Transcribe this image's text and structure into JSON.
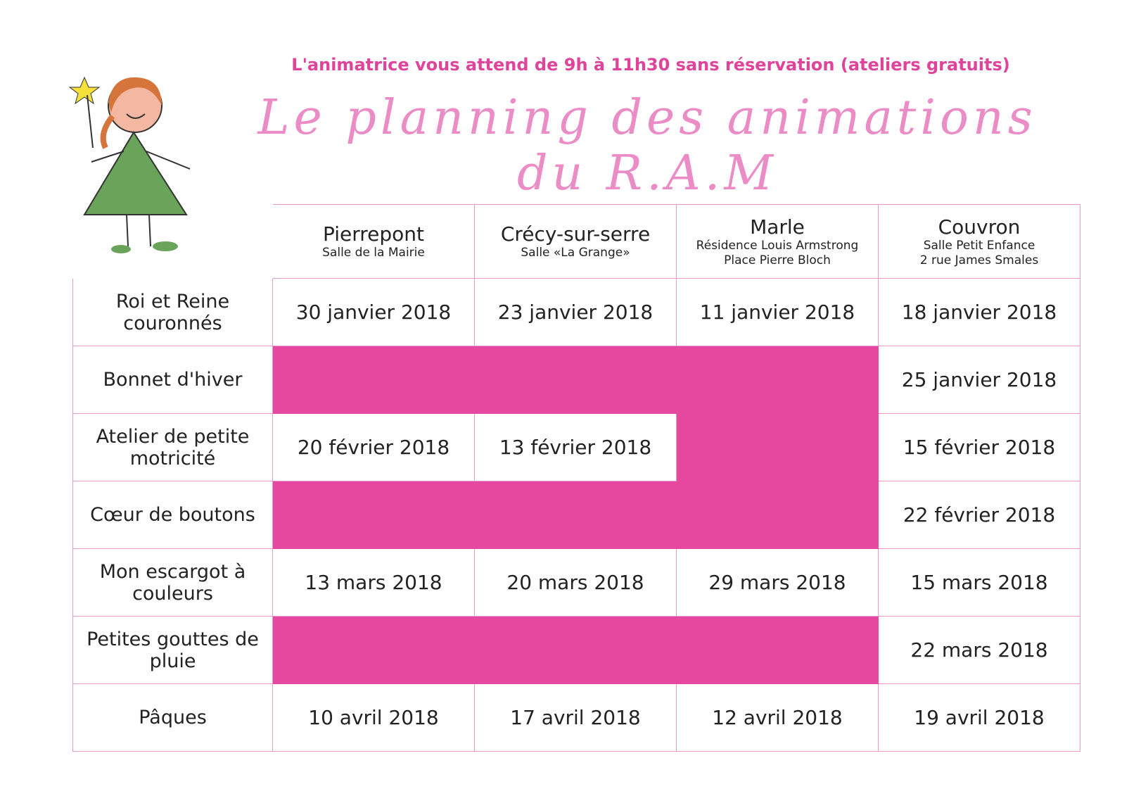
{
  "header": {
    "subtitle": "L'animatrice vous attend de 9h à 11h30 sans réservation (ateliers gratuits)",
    "title": "Le planning des animations du R.A.M"
  },
  "table": {
    "columns": [
      {
        "name": "Pierrepont",
        "details": [
          "Salle de la Mairie"
        ]
      },
      {
        "name": "Crécy-sur-serre",
        "details": [
          "Salle «La Grange»"
        ]
      },
      {
        "name": "Marle",
        "details": [
          "Résidence Louis Armstrong",
          "Place Pierre Bloch"
        ]
      },
      {
        "name": "Couvron",
        "details": [
          "Salle Petit Enfance",
          "2 rue James Smales"
        ]
      }
    ],
    "rows": [
      {
        "activity": "Roi et Reine couronnés",
        "dates": [
          "30 janvier 2018",
          "23 janvier 2018",
          "11 janvier 2018",
          "18 janvier 2018"
        ]
      },
      {
        "activity": "Bonnet d'hiver",
        "dates": [
          null,
          null,
          null,
          "25 janvier 2018"
        ]
      },
      {
        "activity": "Atelier de petite motricité",
        "dates": [
          "20 février 2018",
          "13 février 2018",
          null,
          "15 février 2018"
        ]
      },
      {
        "activity": "Cœur de boutons",
        "dates": [
          null,
          null,
          null,
          "22 février 2018"
        ]
      },
      {
        "activity": "Mon escargot à couleurs",
        "dates": [
          "13 mars 2018",
          "20 mars 2018",
          "29 mars 2018",
          "15 mars 2018"
        ]
      },
      {
        "activity": "Petites gouttes de pluie",
        "dates": [
          null,
          null,
          null,
          "22 mars 2018"
        ]
      },
      {
        "activity": "Pâques",
        "dates": [
          "10 avril 2018",
          "17 avril 2018",
          "12 avril 2018",
          "19 avril 2018"
        ]
      }
    ]
  }
}
